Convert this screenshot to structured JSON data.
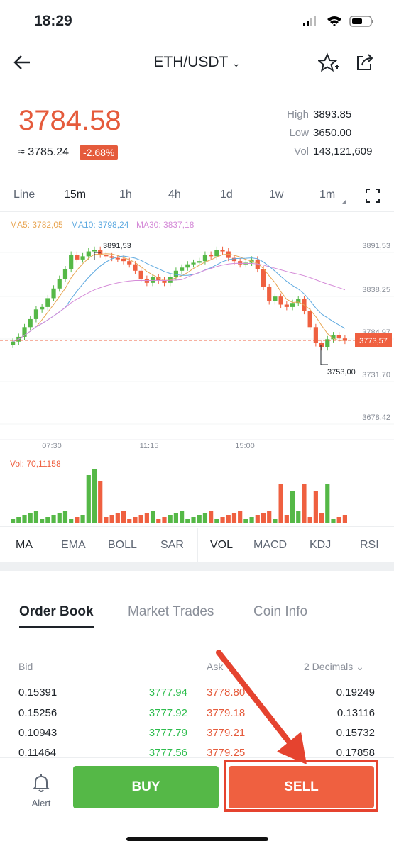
{
  "status_bar": {
    "time": "18:29"
  },
  "header": {
    "title": "ETH/USDT"
  },
  "price": {
    "last": "3784.58",
    "approx": "≈ 3785.24",
    "change": "-2.68%",
    "high_label": "High",
    "high": "3893.85",
    "low_label": "Low",
    "low": "3650.00",
    "vol_label": "Vol",
    "vol": "143,121,609"
  },
  "timeframes": [
    "Line",
    "15m",
    "1h",
    "4h",
    "1d",
    "1w",
    "1m"
  ],
  "selected_timeframe": "15m",
  "ma_legend": {
    "ma5": "MA5: 3782,05",
    "ma10": "MA10: 3798,24",
    "ma30": "MA30: 3837,18"
  },
  "chart": {
    "y_labels": [
      "3891,53",
      "3838,25",
      "3784,97",
      "3731,70",
      "3678,42"
    ],
    "x_labels": [
      "07:30",
      "11:15",
      "15:00"
    ],
    "current_price_tag": "3773,57",
    "high_marker": "3891,53",
    "low_marker": "3753,00",
    "vol_label": "Vol: 70,11158"
  },
  "indicators_left": [
    "MA",
    "EMA",
    "BOLL",
    "SAR"
  ],
  "indicators_right": [
    "VOL",
    "MACD",
    "KDJ",
    "RSI"
  ],
  "order_book": {
    "tabs": [
      "Order Book",
      "Market Trades",
      "Coin Info"
    ],
    "bid_header": "Bid",
    "ask_header": "Ask",
    "decimals": "2 Decimals",
    "rows": [
      {
        "bid_qty": "0.15391",
        "bid_px": "3777.94",
        "ask_px": "3778.80",
        "ask_qty": "0.19249"
      },
      {
        "bid_qty": "0.15256",
        "bid_px": "3777.92",
        "ask_px": "3779.18",
        "ask_qty": "0.13116"
      },
      {
        "bid_qty": "0.10943",
        "bid_px": "3777.79",
        "ask_px": "3779.21",
        "ask_qty": "0.15732"
      },
      {
        "bid_qty": "0.11464",
        "bid_px": "3777.56",
        "ask_px": "3779.25",
        "ask_qty": "0.17858"
      }
    ]
  },
  "bottom_bar": {
    "alert_label": "Alert",
    "buy_label": "BUY",
    "sell_label": "SELL"
  },
  "colors": {
    "up": "#55b847",
    "down": "#ef6040",
    "ma5": "#e8a552",
    "ma10": "#5da9e0",
    "ma30": "#d58bd8",
    "annotation": "#e5432f"
  }
}
